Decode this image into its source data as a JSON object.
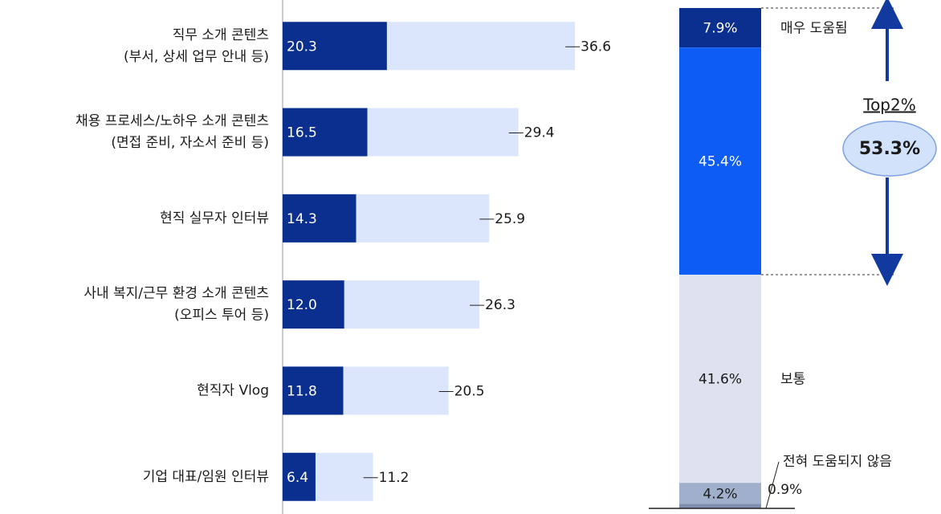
{
  "chart_data": [
    {
      "type": "hbar-stacked",
      "categories": [
        [
          "직무 소개 콘텐츠",
          "(부서, 상세 업무 안내 등)"
        ],
        [
          "채용 프로세스/노하우 소개 콘텐츠",
          "(면접 준비, 자소서 준비 등)"
        ],
        [
          "현직 실무자 인터뷰"
        ],
        [
          "사내 복지/근무 환경 소개 콘텐츠",
          "(오피스 투어 등)"
        ],
        [
          "현직자 Vlog"
        ],
        [
          "기업 대표/임원 인터뷰"
        ]
      ],
      "series": [
        {
          "color": "#0a2f8f",
          "values": [
            20.3,
            16.5,
            14.3,
            12.0,
            11.8,
            6.4
          ],
          "value_labels": [
            "20.3",
            "16.5",
            "14.3",
            "12.0",
            "11.8",
            "6.4"
          ]
        },
        {
          "color": "#dbe6fd",
          "values": [
            36.6,
            29.4,
            25.9,
            26.3,
            20.5,
            11.2
          ],
          "value_labels": [
            "36.6",
            "29.4",
            "25.9",
            "26.3",
            "20.5",
            "11.2"
          ]
        }
      ],
      "xlim": [
        0,
        70
      ]
    },
    {
      "type": "stacked-column",
      "series": [
        {
          "name": "매우 도움됨",
          "color": "#0a2f8f",
          "values": [
            7.9
          ],
          "value_labels": [
            "7.9%"
          ]
        },
        {
          "color": "#0d5cf5",
          "values": [
            45.4
          ],
          "value_labels": [
            "45.4%"
          ]
        },
        {
          "name": "보통",
          "color": "#dde2ee",
          "values": [
            41.6
          ],
          "value_labels": [
            "41.6%"
          ]
        },
        {
          "color": "#a0b0cc",
          "values": [
            4.2
          ],
          "value_labels": [
            "4.2%"
          ]
        },
        {
          "name": "전혀 도움되지 않음",
          "color": "#7f8fb0",
          "values": [
            0.9
          ],
          "value_labels": [
            "0.9%"
          ]
        }
      ],
      "ylim": [
        0,
        100
      ],
      "annotation": {
        "label": "Top2%",
        "value": 53.3,
        "value_label": "53.3%"
      }
    }
  ]
}
